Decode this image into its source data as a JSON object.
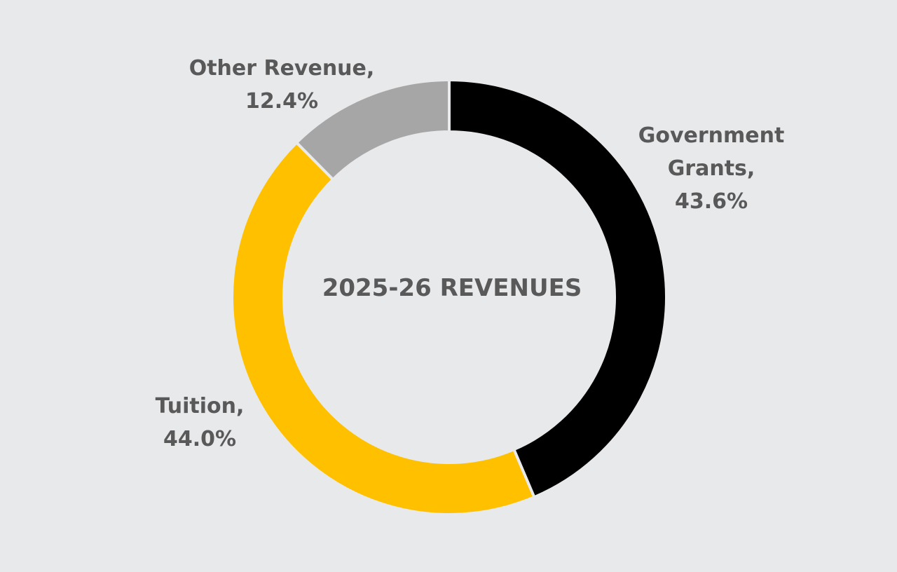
{
  "chart_data": {
    "type": "pie",
    "title": "2025-26 REVENUES",
    "donut": true,
    "start": "12 o'clock, clockwise",
    "slices": [
      {
        "name": "Government Grants",
        "name_lines": [
          "Government",
          "Grants,"
        ],
        "value": 43.6,
        "value_label": "43.6%",
        "color": "#000000"
      },
      {
        "name": "Tuition",
        "name_lines": [
          "Tuition,"
        ],
        "value": 44.0,
        "value_label": "44.0%",
        "color": "#FFC000"
      },
      {
        "name": "Other Revenue",
        "name_lines": [
          "Other Revenue,"
        ],
        "value": 12.4,
        "value_label": "12.4%",
        "color": "#A6A6A6"
      }
    ],
    "background_color": "#E8E9EB",
    "separator_color": "#E8E9EB",
    "label_color": "#595959"
  }
}
